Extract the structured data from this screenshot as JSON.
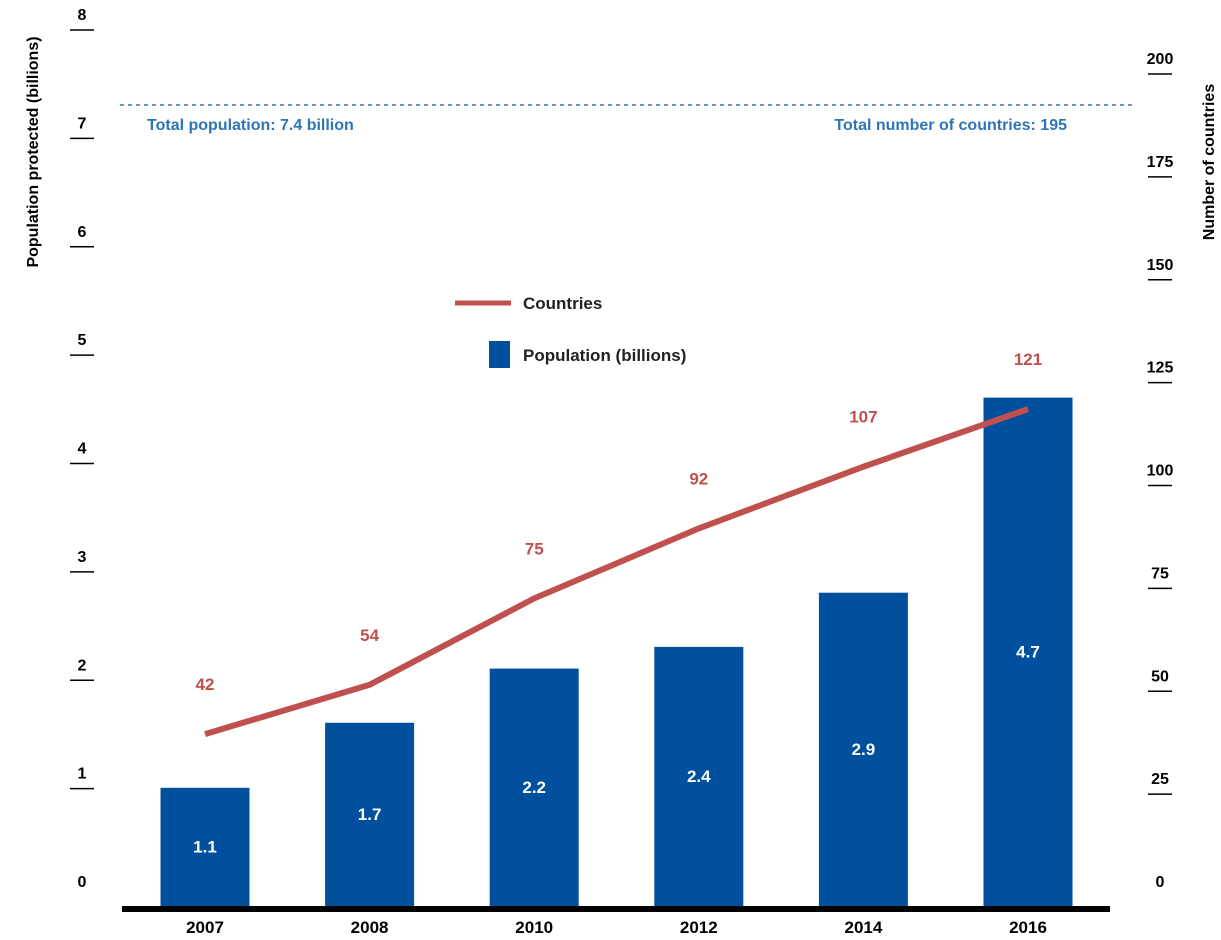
{
  "chart_data": {
    "type": "bar",
    "categories": [
      "2007",
      "2008",
      "2010",
      "2012",
      "2014",
      "2016"
    ],
    "series": [
      {
        "name": "Population (billions)",
        "type": "bar",
        "axis": "left",
        "values": [
          1.1,
          1.7,
          2.2,
          2.4,
          2.9,
          4.7
        ],
        "color": "#00509e"
      },
      {
        "name": "Countries",
        "type": "line",
        "axis": "right",
        "values": [
          42,
          54,
          75,
          92,
          107,
          121
        ],
        "color": "#c0504d"
      }
    ],
    "y_left": {
      "label": "Population protected (billions)",
      "ylim": [
        0,
        8
      ],
      "ticks": [
        "0",
        "1",
        "2",
        "3",
        "4",
        "5",
        "6",
        "7",
        "8"
      ]
    },
    "y_right": {
      "label": "Number of countries",
      "ylim": [
        0,
        200
      ],
      "ticks": [
        "0",
        "25",
        "50",
        "75",
        "100",
        "125",
        "150",
        "175",
        "200"
      ]
    },
    "reference": {
      "population_value": 7.4,
      "countries_value": 195,
      "population_text": "Total population: 7.4 billion",
      "countries_text": "Total number of countries: 195",
      "color": "#2e75b6"
    },
    "legend": {
      "placement": "center",
      "items": [
        {
          "label": "Countries",
          "color": "#c0504d"
        },
        {
          "label": "Population (billions)",
          "color": "#00509e"
        }
      ]
    },
    "grid": false
  }
}
